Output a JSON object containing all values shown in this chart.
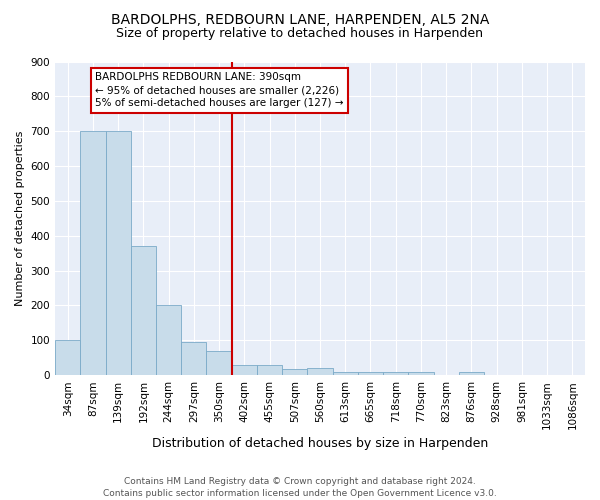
{
  "title": "BARDOLPHS, REDBOURN LANE, HARPENDEN, AL5 2NA",
  "subtitle": "Size of property relative to detached houses in Harpenden",
  "xlabel": "Distribution of detached houses by size in Harpenden",
  "ylabel": "Number of detached properties",
  "categories": [
    "34sqm",
    "87sqm",
    "139sqm",
    "192sqm",
    "244sqm",
    "297sqm",
    "350sqm",
    "402sqm",
    "455sqm",
    "507sqm",
    "560sqm",
    "613sqm",
    "665sqm",
    "718sqm",
    "770sqm",
    "823sqm",
    "876sqm",
    "928sqm",
    "981sqm",
    "1033sqm",
    "1086sqm"
  ],
  "values": [
    100,
    700,
    700,
    370,
    200,
    95,
    70,
    30,
    30,
    18,
    20,
    10,
    8,
    8,
    10,
    0,
    8,
    0,
    0,
    0,
    0
  ],
  "bar_color": "#c8dcea",
  "bar_edge_color": "#7aaac8",
  "vline_x_index": 7,
  "vline_color": "#cc0000",
  "annotation_text": "BARDOLPHS REDBOURN LANE: 390sqm\n← 95% of detached houses are smaller (2,226)\n5% of semi-detached houses are larger (127) →",
  "annotation_box_facecolor": "#ffffff",
  "annotation_box_edgecolor": "#cc0000",
  "background_color": "#ffffff",
  "plot_bg_color": "#e8eef8",
  "footer": "Contains HM Land Registry data © Crown copyright and database right 2024.\nContains public sector information licensed under the Open Government Licence v3.0.",
  "ylim": [
    0,
    900
  ],
  "yticks": [
    0,
    100,
    200,
    300,
    400,
    500,
    600,
    700,
    800,
    900
  ],
  "title_fontsize": 10,
  "subtitle_fontsize": 9,
  "xlabel_fontsize": 9,
  "ylabel_fontsize": 8,
  "tick_fontsize": 7.5,
  "footer_fontsize": 6.5
}
